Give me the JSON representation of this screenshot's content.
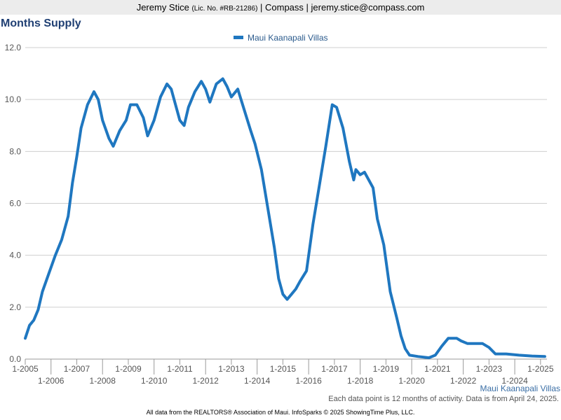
{
  "header": {
    "name": "Jeremy Stice",
    "license": "(Lic. No. #RB-21286)",
    "company_email": " | Compass | jeremy.stice@compass.com"
  },
  "chart_title": "Months Supply",
  "footnote": "Each data point is 12 months of activity. Data is from April 24, 2025.",
  "credit": "All data from the REALTORS® Association of Maui. InfoSparks © 2025 ShowingTime Plus, LLC.",
  "chart_data": {
    "type": "line",
    "title": "Months Supply",
    "xlabel": "",
    "ylabel": "",
    "xlim": [
      "2005-01",
      "2025-04"
    ],
    "ylim": [
      0,
      12
    ],
    "yticks": [
      "0.0",
      "2.0",
      "4.0",
      "6.0",
      "8.0",
      "10.0",
      "12.0"
    ],
    "xticks": [
      "1-2005",
      "1-2006",
      "1-2007",
      "1-2008",
      "1-2009",
      "1-2010",
      "1-2011",
      "1-2012",
      "1-2013",
      "1-2014",
      "1-2015",
      "1-2016",
      "1-2017",
      "1-2018",
      "1-2019",
      "1-2020",
      "1-2021",
      "1-2022",
      "1-2023",
      "1-2024",
      "1-2025"
    ],
    "grid": true,
    "legend": "top-center",
    "series_color": "#1f77c0",
    "series": [
      {
        "name": "Maui Kaanapali Villas",
        "points": [
          [
            "2005-01",
            0.8
          ],
          [
            "2005-03",
            1.3
          ],
          [
            "2005-05",
            1.5
          ],
          [
            "2005-07",
            1.9
          ],
          [
            "2005-09",
            2.6
          ],
          [
            "2005-12",
            3.3
          ],
          [
            "2006-03",
            4.0
          ],
          [
            "2006-06",
            4.6
          ],
          [
            "2006-09",
            5.5
          ],
          [
            "2006-11",
            6.8
          ],
          [
            "2007-01",
            7.8
          ],
          [
            "2007-03",
            8.9
          ],
          [
            "2007-06",
            9.8
          ],
          [
            "2007-09",
            10.3
          ],
          [
            "2007-11",
            10.0
          ],
          [
            "2008-01",
            9.2
          ],
          [
            "2008-04",
            8.5
          ],
          [
            "2008-06",
            8.2
          ],
          [
            "2008-09",
            8.8
          ],
          [
            "2008-12",
            9.2
          ],
          [
            "2009-02",
            9.8
          ],
          [
            "2009-05",
            9.8
          ],
          [
            "2009-08",
            9.3
          ],
          [
            "2009-10",
            8.6
          ],
          [
            "2010-01",
            9.2
          ],
          [
            "2010-04",
            10.1
          ],
          [
            "2010-07",
            10.6
          ],
          [
            "2010-09",
            10.4
          ],
          [
            "2010-11",
            9.8
          ],
          [
            "2011-01",
            9.2
          ],
          [
            "2011-03",
            9.0
          ],
          [
            "2011-05",
            9.7
          ],
          [
            "2011-08",
            10.3
          ],
          [
            "2011-11",
            10.7
          ],
          [
            "2012-01",
            10.4
          ],
          [
            "2012-03",
            9.9
          ],
          [
            "2012-06",
            10.6
          ],
          [
            "2012-09",
            10.8
          ],
          [
            "2012-11",
            10.5
          ],
          [
            "2013-01",
            10.1
          ],
          [
            "2013-04",
            10.4
          ],
          [
            "2013-07",
            9.6
          ],
          [
            "2013-10",
            8.8
          ],
          [
            "2013-12",
            8.3
          ],
          [
            "2014-03",
            7.3
          ],
          [
            "2014-06",
            5.8
          ],
          [
            "2014-09",
            4.3
          ],
          [
            "2014-11",
            3.1
          ],
          [
            "2015-01",
            2.5
          ],
          [
            "2015-03",
            2.3
          ],
          [
            "2015-05",
            2.5
          ],
          [
            "2015-07",
            2.7
          ],
          [
            "2015-09",
            3.0
          ],
          [
            "2015-12",
            3.4
          ],
          [
            "2016-03",
            5.2
          ],
          [
            "2016-06",
            6.7
          ],
          [
            "2016-09",
            8.2
          ],
          [
            "2016-12",
            9.8
          ],
          [
            "2017-02",
            9.7
          ],
          [
            "2017-05",
            8.9
          ],
          [
            "2017-08",
            7.6
          ],
          [
            "2017-10",
            6.9
          ],
          [
            "2017-11",
            7.3
          ],
          [
            "2018-01",
            7.1
          ],
          [
            "2018-03",
            7.2
          ],
          [
            "2018-05",
            6.9
          ],
          [
            "2018-07",
            6.6
          ],
          [
            "2018-09",
            5.4
          ],
          [
            "2018-12",
            4.4
          ],
          [
            "2019-03",
            2.6
          ],
          [
            "2019-06",
            1.6
          ],
          [
            "2019-08",
            0.9
          ],
          [
            "2019-10",
            0.4
          ],
          [
            "2019-12",
            0.15
          ],
          [
            "2020-04",
            0.1
          ],
          [
            "2020-09",
            0.05
          ],
          [
            "2020-12",
            0.15
          ],
          [
            "2021-03",
            0.5
          ],
          [
            "2021-06",
            0.8
          ],
          [
            "2021-10",
            0.8
          ],
          [
            "2021-12",
            0.7
          ],
          [
            "2022-03",
            0.6
          ],
          [
            "2022-06",
            0.6
          ],
          [
            "2022-10",
            0.6
          ],
          [
            "2023-01",
            0.45
          ],
          [
            "2023-04",
            0.2
          ],
          [
            "2023-09",
            0.2
          ],
          [
            "2024-03",
            0.15
          ],
          [
            "2024-09",
            0.12
          ],
          [
            "2025-03",
            0.1
          ]
        ]
      }
    ]
  }
}
